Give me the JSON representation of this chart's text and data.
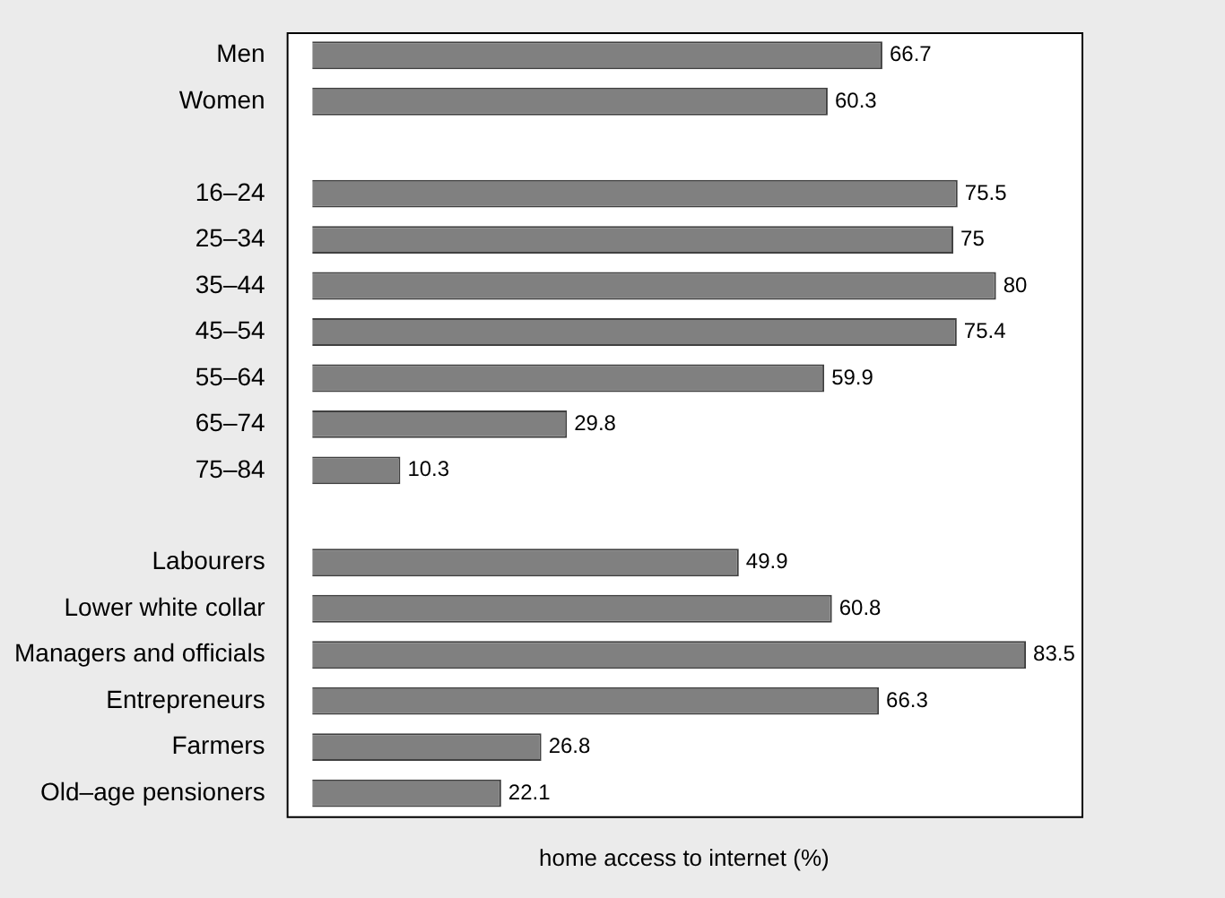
{
  "chart_data": {
    "type": "bar",
    "orientation": "horizontal",
    "xlabel": "home access to internet (%)",
    "categories": [
      "Men",
      "Women",
      null,
      "16–24",
      "25–34",
      "35–44",
      "45–54",
      "55–64",
      "65–74",
      "75–84",
      null,
      "Labourers",
      "Lower white collar",
      "Managers and officials",
      "Entrepreneurs",
      "Farmers",
      "Old–age pensioners"
    ],
    "values": [
      66.7,
      60.3,
      null,
      75.5,
      75,
      80,
      75.4,
      59.9,
      29.8,
      10.3,
      null,
      49.9,
      60.8,
      83.5,
      66.3,
      26.8,
      22.1
    ],
    "color": "#808080",
    "xlim": [
      -3,
      90
    ],
    "data_labels": true,
    "grid": false,
    "legend": false
  }
}
